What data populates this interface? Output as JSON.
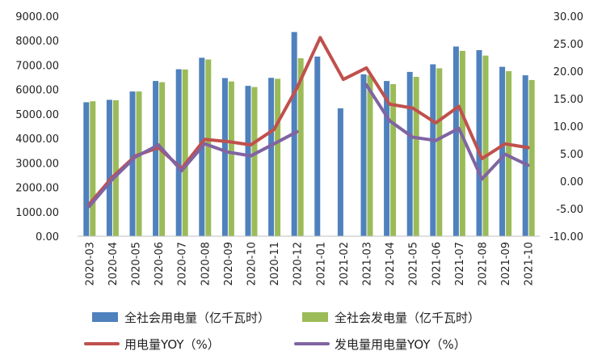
{
  "chart_data": {
    "type": "bar",
    "categories": [
      "2020-03",
      "2020-04",
      "2020-05",
      "2020-06",
      "2020-07",
      "2020-08",
      "2020-09",
      "2020-10",
      "2020-11",
      "2020-12",
      "2021-01",
      "2021-02",
      "2021-03",
      "2021-04",
      "2021-05",
      "2021-06",
      "2021-07",
      "2021-08",
      "2021-09",
      "2021-10"
    ],
    "y_left": {
      "ylim": [
        0,
        9000
      ],
      "ticks": [
        "0.00",
        "1000.00",
        "2000.00",
        "3000.00",
        "4000.00",
        "5000.00",
        "6000.00",
        "7000.00",
        "8000.00",
        "9000.00"
      ]
    },
    "y_right": {
      "ylim": [
        -10,
        30
      ],
      "ticks": [
        "-10.00",
        "-5.00",
        "0.00",
        "5.00",
        "10.00",
        "15.00",
        "20.00",
        "25.00",
        "30.00"
      ]
    },
    "series": [
      {
        "name": "全社会用电量（亿千瓦时）",
        "type": "bar",
        "axis": "left",
        "color": "#4f81bd",
        "values": [
          5480,
          5580,
          5920,
          6350,
          6830,
          7300,
          6470,
          6150,
          6480,
          8350,
          7350,
          5230,
          6620,
          6350,
          6720,
          7030,
          7760,
          7610,
          6930,
          6580
        ]
      },
      {
        "name": "全社会发电量（亿千瓦时）",
        "type": "bar",
        "axis": "left",
        "color": "#9bbb59",
        "values": [
          5520,
          5560,
          5920,
          6300,
          6820,
          7230,
          6330,
          6100,
          6440,
          7280,
          null,
          null,
          6580,
          6220,
          6520,
          6870,
          7580,
          7390,
          6750,
          6390
        ]
      },
      {
        "name": "用电量YOY（%）",
        "type": "line",
        "axis": "right",
        "color": "#c0504d",
        "values": [
          -4.2,
          0.7,
          4.6,
          6.1,
          2.3,
          7.6,
          7.2,
          6.6,
          9.4,
          17.0,
          26.1,
          18.5,
          20.6,
          14.0,
          13.3,
          10.6,
          13.6,
          4.1,
          6.8,
          6.1
        ]
      },
      {
        "name": "发电量用电量YOY（%）",
        "type": "line",
        "axis": "right",
        "color": "#8064a2",
        "values": [
          -4.6,
          0.3,
          4.4,
          6.6,
          1.9,
          6.8,
          5.3,
          4.6,
          6.8,
          9.0,
          null,
          null,
          17.5,
          11.0,
          8.0,
          7.4,
          9.6,
          0.4,
          4.9,
          2.9
        ]
      }
    ],
    "legend": {
      "placement": "bottom"
    },
    "grid": false
  }
}
